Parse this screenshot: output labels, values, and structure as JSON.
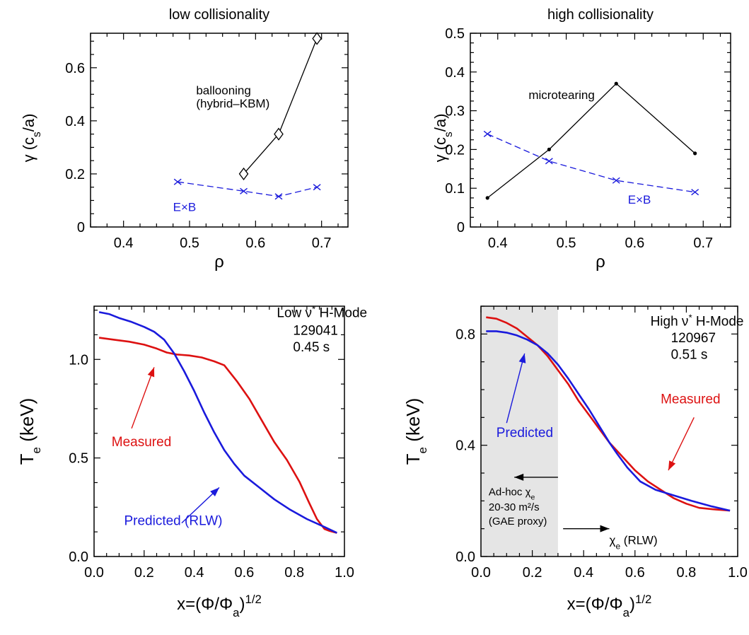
{
  "colors": {
    "black": "#000000",
    "blue": "#1a1adc",
    "red": "#dd1111",
    "shade": "#e5e5e5"
  },
  "chart_data": [
    {
      "type": "line",
      "title": "low collisionality",
      "xlabel": "ρ",
      "ylabel": "γ (c_s/a)",
      "xlim": [
        0.35,
        0.74
      ],
      "ylim": [
        0,
        0.73
      ],
      "xticks": [
        0.4,
        0.5,
        0.6,
        0.7
      ],
      "xtick_labels": [
        "0.4",
        "0.5",
        "0.6",
        "0.7"
      ],
      "yticks": [
        0,
        0.2,
        0.4,
        0.6
      ],
      "ytick_labels": [
        "0",
        "0.2",
        "0.4",
        "0.6"
      ],
      "grid": false,
      "series": [
        {
          "name": "ballooning",
          "color": "black",
          "marker": "diamond",
          "dash": false,
          "x": [
            0.582,
            0.635,
            0.693
          ],
          "y": [
            0.2,
            0.35,
            0.71
          ]
        },
        {
          "name": "E×B",
          "color": "blue",
          "marker": "x",
          "dash": true,
          "x": [
            0.482,
            0.582,
            0.635,
            0.693
          ],
          "y": [
            0.17,
            0.135,
            0.115,
            0.15
          ]
        }
      ],
      "annotations": [
        {
          "text": "ballooning",
          "x": 0.51,
          "y": 0.5,
          "color": "black",
          "size": "normal"
        },
        {
          "text": "(hybrid–KBM)",
          "x": 0.51,
          "y": 0.45,
          "color": "black",
          "size": "normal"
        },
        {
          "text": "E×B",
          "x": 0.475,
          "y": 0.06,
          "color": "blue",
          "size": "normal"
        }
      ]
    },
    {
      "type": "line",
      "title": "high collisionality",
      "xlabel": "ρ",
      "ylabel": "γ (c_s/a)",
      "xlim": [
        0.36,
        0.74
      ],
      "ylim": [
        0,
        0.5
      ],
      "xticks": [
        0.4,
        0.5,
        0.6,
        0.7
      ],
      "xtick_labels": [
        "0.4",
        "0.5",
        "0.6",
        "0.7"
      ],
      "yticks": [
        0,
        0.1,
        0.2,
        0.3,
        0.4,
        0.5
      ],
      "ytick_labels": [
        "0",
        "0.1",
        "0.2",
        "0.3",
        "0.4",
        "0.5"
      ],
      "grid": false,
      "series": [
        {
          "name": "microtearing",
          "color": "black",
          "marker": "dot",
          "dash": false,
          "x": [
            0.385,
            0.475,
            0.573,
            0.688
          ],
          "y": [
            0.075,
            0.2,
            0.37,
            0.19
          ]
        },
        {
          "name": "E×B",
          "color": "blue",
          "marker": "x",
          "dash": true,
          "x": [
            0.385,
            0.475,
            0.573,
            0.688
          ],
          "y": [
            0.24,
            0.17,
            0.12,
            0.09
          ]
        }
      ],
      "annotations": [
        {
          "text": "microtearing",
          "x": 0.445,
          "y": 0.33,
          "color": "black",
          "size": "normal"
        },
        {
          "text": "E×B",
          "x": 0.59,
          "y": 0.06,
          "color": "blue",
          "size": "normal"
        }
      ]
    },
    {
      "type": "line",
      "title": "",
      "xlabel": "x=(Φ/Φa)^1/2",
      "ylabel": "Te (keV)",
      "xlim": [
        0,
        1.0
      ],
      "ylim": [
        0,
        1.27
      ],
      "xticks": [
        0,
        0.2,
        0.4,
        0.6,
        0.8,
        1.0
      ],
      "xtick_labels": [
        "0.0",
        "0.2",
        "0.4",
        "0.6",
        "0.8",
        "1.0"
      ],
      "yticks": [
        0,
        0.5,
        1.0
      ],
      "ytick_labels": [
        "0.0",
        "0.5",
        "1.0"
      ],
      "grid": false,
      "series": [
        {
          "name": "Measured",
          "color": "red",
          "x": [
            0.02,
            0.08,
            0.14,
            0.2,
            0.25,
            0.29,
            0.33,
            0.38,
            0.43,
            0.48,
            0.52,
            0.57,
            0.62,
            0.67,
            0.72,
            0.77,
            0.82,
            0.86,
            0.89,
            0.92,
            0.94,
            0.97
          ],
          "y": [
            1.11,
            1.1,
            1.09,
            1.075,
            1.055,
            1.035,
            1.025,
            1.02,
            1.01,
            0.99,
            0.97,
            0.89,
            0.8,
            0.69,
            0.58,
            0.49,
            0.38,
            0.27,
            0.19,
            0.14,
            0.13,
            0.12
          ]
        },
        {
          "name": "Predicted (RLW)",
          "color": "blue",
          "x": [
            0.02,
            0.06,
            0.1,
            0.15,
            0.2,
            0.24,
            0.28,
            0.32,
            0.36,
            0.4,
            0.44,
            0.48,
            0.52,
            0.56,
            0.6,
            0.66,
            0.72,
            0.78,
            0.85,
            0.92,
            0.97
          ],
          "y": [
            1.24,
            1.23,
            1.21,
            1.19,
            1.165,
            1.14,
            1.1,
            1.03,
            0.94,
            0.84,
            0.73,
            0.63,
            0.54,
            0.47,
            0.41,
            0.35,
            0.29,
            0.24,
            0.19,
            0.15,
            0.12
          ]
        }
      ],
      "annotations": [
        {
          "text": "Low ν* H-Mode",
          "x": 0.73,
          "y": 1.215,
          "color": "black",
          "size": "big"
        },
        {
          "text": "129041",
          "x": 0.795,
          "y": 1.125,
          "color": "black",
          "size": "big"
        },
        {
          "text": "0.45 s",
          "x": 0.795,
          "y": 1.04,
          "color": "black",
          "size": "big"
        },
        {
          "text": "Measured",
          "x": 0.07,
          "y": 0.56,
          "color": "red",
          "size": "big"
        },
        {
          "text": "Predicted (RLW)",
          "x": 0.12,
          "y": 0.16,
          "color": "blue",
          "size": "big"
        }
      ],
      "arrows": [
        {
          "color": "red",
          "from": [
            0.15,
            0.65
          ],
          "to": [
            0.24,
            0.96
          ]
        },
        {
          "color": "blue",
          "from": [
            0.35,
            0.17
          ],
          "to": [
            0.5,
            0.35
          ]
        }
      ]
    },
    {
      "type": "line",
      "title": "",
      "xlabel": "x=(Φ/Φa)^1/2",
      "ylabel": "Te (keV)",
      "xlim": [
        0,
        1.0
      ],
      "ylim": [
        0,
        0.9
      ],
      "xticks": [
        0,
        0.2,
        0.4,
        0.6,
        0.8,
        1.0
      ],
      "xtick_labels": [
        "0.0",
        "0.2",
        "0.4",
        "0.6",
        "0.8",
        "1.0"
      ],
      "yticks": [
        0,
        0.4,
        0.8
      ],
      "ytick_labels": [
        "0.0",
        "0.4",
        "0.8"
      ],
      "grid": false,
      "shaded_region": [
        0,
        0.3
      ],
      "series": [
        {
          "name": "Measured",
          "color": "red",
          "x": [
            0.02,
            0.06,
            0.1,
            0.14,
            0.18,
            0.22,
            0.26,
            0.3,
            0.34,
            0.38,
            0.42,
            0.46,
            0.5,
            0.55,
            0.6,
            0.65,
            0.7,
            0.75,
            0.8,
            0.85,
            0.9,
            0.97
          ],
          "y": [
            0.86,
            0.855,
            0.84,
            0.82,
            0.79,
            0.76,
            0.72,
            0.67,
            0.62,
            0.56,
            0.51,
            0.46,
            0.41,
            0.36,
            0.31,
            0.27,
            0.24,
            0.21,
            0.19,
            0.175,
            0.17,
            0.165
          ]
        },
        {
          "name": "Predicted",
          "color": "blue",
          "x": [
            0.02,
            0.06,
            0.1,
            0.14,
            0.18,
            0.22,
            0.26,
            0.3,
            0.34,
            0.38,
            0.42,
            0.46,
            0.5,
            0.53,
            0.57,
            0.62,
            0.68,
            0.75,
            0.82,
            0.9,
            0.97
          ],
          "y": [
            0.81,
            0.81,
            0.805,
            0.795,
            0.78,
            0.76,
            0.73,
            0.69,
            0.64,
            0.585,
            0.53,
            0.47,
            0.41,
            0.37,
            0.32,
            0.27,
            0.24,
            0.22,
            0.2,
            0.18,
            0.165
          ]
        }
      ],
      "annotations": [
        {
          "text": "High ν* H-Mode",
          "x": 0.66,
          "y": 0.83,
          "color": "black",
          "size": "big"
        },
        {
          "text": "120967",
          "x": 0.74,
          "y": 0.77,
          "color": "black",
          "size": "big"
        },
        {
          "text": "0.51 s",
          "x": 0.74,
          "y": 0.71,
          "color": "black",
          "size": "big"
        },
        {
          "text": "Measured",
          "x": 0.7,
          "y": 0.55,
          "color": "red",
          "size": "big"
        },
        {
          "text": "Predicted",
          "x": 0.06,
          "y": 0.43,
          "color": "blue",
          "size": "big"
        },
        {
          "text": "Ad-hoc χe",
          "x": 0.03,
          "y": 0.22,
          "color": "black",
          "size": "small"
        },
        {
          "text": "20-30 m²/s",
          "x": 0.03,
          "y": 0.165,
          "color": "black",
          "size": "small"
        },
        {
          "text": "(GAE proxy)",
          "x": 0.03,
          "y": 0.115,
          "color": "black",
          "size": "small"
        },
        {
          "text": "χe (RLW)",
          "x": 0.5,
          "y": 0.045,
          "color": "black",
          "size": "normal"
        }
      ],
      "arrows": [
        {
          "color": "blue",
          "from": [
            0.1,
            0.48
          ],
          "to": [
            0.17,
            0.73
          ]
        },
        {
          "color": "red",
          "from": [
            0.83,
            0.5
          ],
          "to": [
            0.73,
            0.31
          ]
        },
        {
          "color": "black",
          "from": [
            0.3,
            0.285
          ],
          "to": [
            0.13,
            0.285
          ]
        },
        {
          "color": "black",
          "from": [
            0.32,
            0.1
          ],
          "to": [
            0.5,
            0.1
          ]
        }
      ]
    }
  ]
}
